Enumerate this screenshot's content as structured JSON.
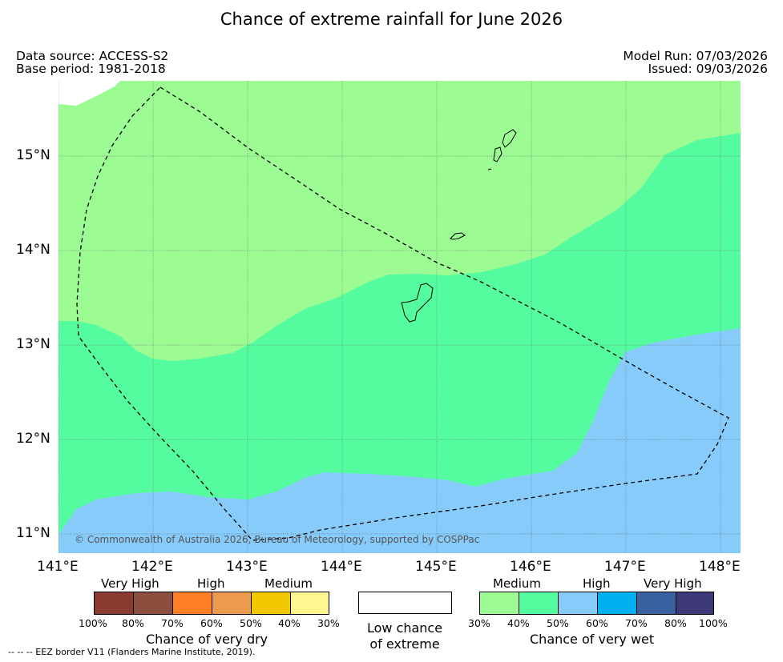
{
  "title": "Chance of extreme rainfall for June 2026",
  "header": {
    "data_source": "Data source: ACCESS-S2",
    "base_period": "Base period: 1981-2018",
    "model_run": "Model Run: 07/03/2026",
    "issued": "Issued: 09/03/2026"
  },
  "map": {
    "lat_labels": [
      "15°N",
      "14°N",
      "13°N",
      "12°N",
      "11°N"
    ],
    "lon_labels": [
      "141°E",
      "142°E",
      "143°E",
      "144°E",
      "145°E",
      "146°E",
      "147°E",
      "148°E"
    ],
    "copyright": "© Commonwealth of Australia 2026, Bureau of Meteorology, supported by COSPPac",
    "colors": {
      "wet_30_40": "#9dfb94",
      "wet_40_50": "#55fb9f",
      "wet_50_60": "#87cbfa",
      "border": "#000000"
    }
  },
  "legend": {
    "dry": {
      "categories": [
        "Very High",
        "High",
        "Medium"
      ],
      "colors": [
        "#8b3a32",
        "#8c4f3f",
        "#ff7f27",
        "#ec9a4d",
        "#f1c700",
        "#fff68f"
      ],
      "ticks": [
        "100%",
        "80%",
        "70%",
        "60%",
        "50%",
        "40%",
        "30%"
      ],
      "caption": "Chance of very dry"
    },
    "low": {
      "caption_line1": "Low chance",
      "caption_line2": "of extreme"
    },
    "wet": {
      "categories": [
        "Medium",
        "High",
        "Very High"
      ],
      "colors": [
        "#9dfb94",
        "#55fb9f",
        "#87cbfa",
        "#01b0f1",
        "#3a62a0",
        "#3e3a7a"
      ],
      "ticks": [
        "30%",
        "40%",
        "50%",
        "60%",
        "70%",
        "80%",
        "100%"
      ],
      "caption": "Chance of very wet"
    }
  },
  "footnote": "--  --  -- EEZ border V11 (Flanders Marine Institute, 2019)."
}
